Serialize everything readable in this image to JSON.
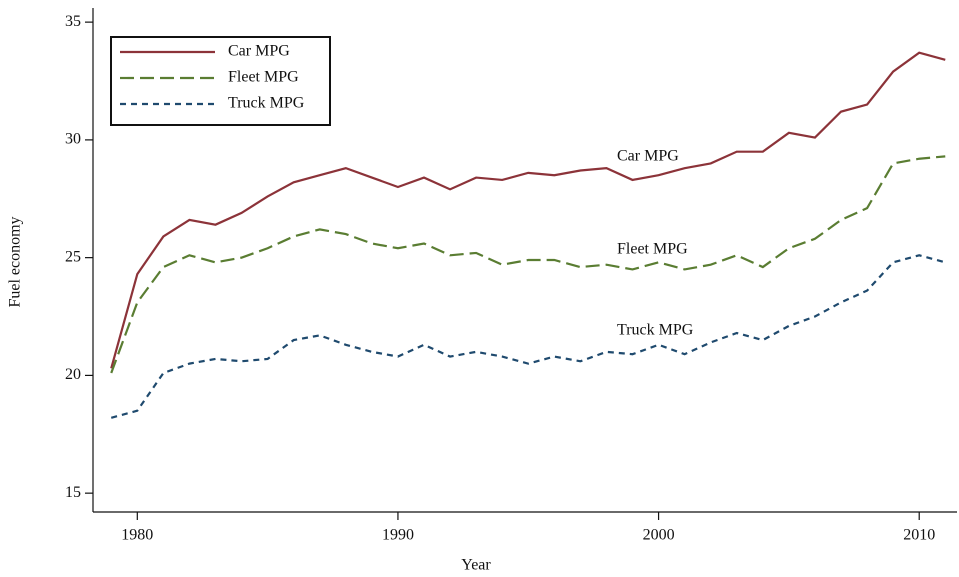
{
  "chart_data": {
    "type": "line",
    "x": [
      1979,
      1980,
      1981,
      1982,
      1983,
      1984,
      1985,
      1986,
      1987,
      1988,
      1989,
      1990,
      1991,
      1992,
      1993,
      1994,
      1995,
      1996,
      1997,
      1998,
      1999,
      2000,
      2001,
      2002,
      2003,
      2004,
      2005,
      2006,
      2007,
      2008,
      2009,
      2010,
      2011
    ],
    "series": [
      {
        "name": "Car MPG",
        "color": "#8c3339",
        "dash": "solid",
        "values": [
          20.3,
          24.3,
          25.9,
          26.6,
          26.4,
          26.9,
          27.6,
          28.2,
          28.5,
          28.8,
          28.4,
          28.0,
          28.4,
          27.9,
          28.4,
          28.3,
          28.6,
          28.5,
          28.7,
          28.8,
          28.3,
          28.5,
          28.8,
          29.0,
          29.5,
          29.5,
          30.3,
          30.1,
          31.2,
          31.5,
          32.9,
          33.7,
          33.4
        ]
      },
      {
        "name": "Fleet MPG",
        "color": "#5a7d32",
        "dash": "long",
        "values": [
          20.1,
          23.1,
          24.6,
          25.1,
          24.8,
          25.0,
          25.4,
          25.9,
          26.2,
          26.0,
          25.6,
          25.4,
          25.6,
          25.1,
          25.2,
          24.7,
          24.9,
          24.9,
          24.6,
          24.7,
          24.5,
          24.8,
          24.5,
          24.7,
          25.1,
          24.6,
          25.4,
          25.8,
          26.6,
          27.1,
          29.0,
          29.2,
          29.3
        ]
      },
      {
        "name": "Truck MPG",
        "color": "#1f4a6e",
        "dash": "short",
        "values": [
          18.2,
          18.5,
          20.1,
          20.5,
          20.7,
          20.6,
          20.7,
          21.5,
          21.7,
          21.3,
          21.0,
          20.8,
          21.3,
          20.8,
          21.0,
          20.8,
          20.5,
          20.8,
          20.6,
          21.0,
          20.9,
          21.3,
          20.9,
          21.4,
          21.8,
          21.5,
          22.1,
          22.5,
          23.1,
          23.6,
          24.8,
          25.1,
          24.8
        ]
      }
    ],
    "xlabel": "Year",
    "ylabel": "Fuel economy",
    "annotations": [
      "Car MPG",
      "Fleet MPG",
      "Truck MPG"
    ],
    "xlim": [
      1978.3,
      2011.45
    ],
    "xticks": [
      1980,
      1990,
      2000,
      2010
    ],
    "ylim": [
      14.2,
      35.6
    ],
    "yticks": [
      15,
      20,
      25,
      30,
      35
    ],
    "legend": "upper left"
  }
}
